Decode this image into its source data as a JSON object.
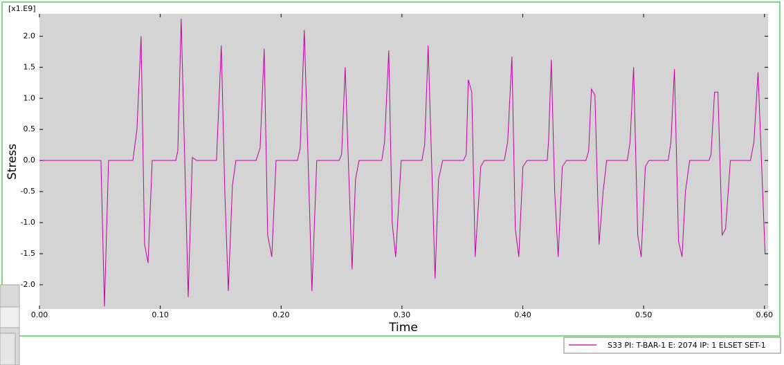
{
  "chart_data": {
    "type": "line",
    "y_multiplier_label": "[x1.E9]",
    "x_label": "Time",
    "y_label": "Stress",
    "x": [
      0,
      0.0509,
      0.0538,
      0.0572,
      0.0773,
      0.0807,
      0.0841,
      0.087,
      0.0899,
      0.0933,
      0.1128,
      0.1145,
      0.1173,
      0.1231,
      0.1265,
      0.1299,
      0.1465,
      0.1505,
      0.1534,
      0.1563,
      0.1597,
      0.1626,
      0.1792,
      0.1826,
      0.186,
      0.1889,
      0.1923,
      0.1958,
      0.2135,
      0.2158,
      0.2192,
      0.2255,
      0.2295,
      0.2479,
      0.2501,
      0.253,
      0.2587,
      0.2616,
      0.2645,
      0.2833,
      0.2856,
      0.2891,
      0.2919,
      0.2948,
      0.2994,
      0.3165,
      0.3188,
      0.3217,
      0.3274,
      0.3303,
      0.3337,
      0.3509,
      0.3532,
      0.3549,
      0.3578,
      0.3606,
      0.3652,
      0.3681,
      0.3847,
      0.3875,
      0.391,
      0.3938,
      0.3967,
      0.4001,
      0.4035,
      0.4202,
      0.4213,
      0.4236,
      0.4264,
      0.4293,
      0.4327,
      0.4362,
      0.4522,
      0.4545,
      0.4568,
      0.4597,
      0.4631,
      0.4665,
      0.4694,
      0.4865,
      0.4888,
      0.4917,
      0.4951,
      0.498,
      0.5014,
      0.5043,
      0.5203,
      0.5226,
      0.5255,
      0.5289,
      0.5318,
      0.5346,
      0.5381,
      0.5541,
      0.5558,
      0.5587,
      0.5615,
      0.565,
      0.5678,
      0.5718,
      0.5884,
      0.5913,
      0.5947,
      0.6005
    ],
    "series": [
      {
        "name": "S33 PI: T-BAR-1 E: 2074 IP: 1 ELSET SET-1",
        "color": "#c000a0",
        "values": [
          0,
          0,
          -2.35,
          0,
          0,
          0.5,
          2.0,
          -1.35,
          -1.65,
          0,
          0,
          0.15,
          2.28,
          -2.2,
          0.05,
          0,
          0,
          1.85,
          -0.5,
          -2.1,
          -0.4,
          0,
          0,
          0.2,
          1.8,
          -1.2,
          -1.55,
          0,
          0,
          0.2,
          2.1,
          -2.1,
          0,
          0,
          0.1,
          1.5,
          -1.75,
          -0.3,
          0,
          0,
          0.3,
          1.77,
          -1.0,
          -1.55,
          0,
          0,
          0.25,
          1.85,
          -1.9,
          -0.3,
          0,
          0,
          0.1,
          1.3,
          1.1,
          -1.55,
          -0.1,
          0,
          0,
          0.3,
          1.67,
          -1.1,
          -1.55,
          -0.1,
          0,
          0,
          0.3,
          1.62,
          -0.5,
          -1.55,
          -0.1,
          0,
          0,
          0.15,
          1.15,
          1.05,
          -1.35,
          -0.5,
          0,
          0,
          0.3,
          1.5,
          -1.2,
          -1.55,
          -0.1,
          0,
          0,
          0.3,
          1.47,
          -1.3,
          -1.55,
          -0.5,
          0,
          0,
          0.1,
          1.1,
          1.1,
          -1.2,
          -1.1,
          0,
          0,
          0.3,
          1.42,
          -1.5
        ]
      }
    ],
    "xlim": [
      0,
      0.603
    ],
    "ylim": [
      -2.39,
      2.36
    ],
    "xticks": [
      {
        "value": 0,
        "label": "0.00"
      },
      {
        "value": 0.1,
        "label": "0.10"
      },
      {
        "value": 0.2,
        "label": "0.20"
      },
      {
        "value": 0.3,
        "label": "0.30"
      },
      {
        "value": 0.4,
        "label": "0.40"
      },
      {
        "value": 0.5,
        "label": "0.50"
      },
      {
        "value": 0.6,
        "label": "0.60"
      }
    ],
    "yticks": [
      {
        "value": -2,
        "label": "-2.0"
      },
      -1.5,
      {
        "value": -1,
        "label": "-1.0"
      },
      -0.5,
      {
        "value": 0,
        "label": "0.0"
      },
      0.5,
      {
        "value": 1,
        "label": "1.0"
      },
      1.5,
      {
        "value": 2,
        "label": "2.0"
      }
    ],
    "grid": false,
    "background": "#d4d4d4",
    "legend": "bottom-right"
  }
}
